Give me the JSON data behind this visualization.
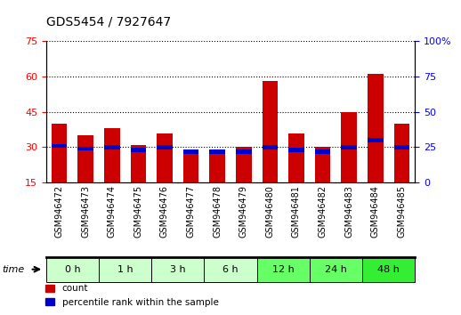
{
  "title": "GDS5454 / 7927647",
  "samples": [
    "GSM946472",
    "GSM946473",
    "GSM946474",
    "GSM946475",
    "GSM946476",
    "GSM946477",
    "GSM946478",
    "GSM946479",
    "GSM946480",
    "GSM946481",
    "GSM946482",
    "GSM946483",
    "GSM946484",
    "GSM946485"
  ],
  "count_values": [
    40,
    35,
    38,
    31,
    36,
    27,
    27,
    30,
    58,
    36,
    30,
    45,
    61,
    40
  ],
  "percentile_values": [
    26,
    24,
    25,
    23,
    25,
    22,
    22,
    22,
    25,
    23,
    22,
    25,
    30,
    25
  ],
  "time_groups": [
    {
      "label": "0 h",
      "samples": [
        0,
        1
      ],
      "color": "#ccffcc"
    },
    {
      "label": "1 h",
      "samples": [
        2,
        3
      ],
      "color": "#ccffcc"
    },
    {
      "label": "3 h",
      "samples": [
        4,
        5
      ],
      "color": "#ccffcc"
    },
    {
      "label": "6 h",
      "samples": [
        6,
        7
      ],
      "color": "#ccffcc"
    },
    {
      "label": "12 h",
      "samples": [
        8,
        9
      ],
      "color": "#66ff66"
    },
    {
      "label": "24 h",
      "samples": [
        10,
        11
      ],
      "color": "#66ff66"
    },
    {
      "label": "48 h",
      "samples": [
        12,
        13
      ],
      "color": "#33ee33"
    }
  ],
  "ylim_left": [
    15,
    75
  ],
  "ylim_right": [
    0,
    100
  ],
  "left_ticks": [
    15,
    30,
    45,
    60,
    75
  ],
  "right_ticks": [
    0,
    25,
    50,
    75,
    100
  ],
  "bar_color": "#cc0000",
  "percentile_color": "#0000cc",
  "bg_color": "#ffffff",
  "plot_bg": "#ffffff",
  "bar_width": 0.6
}
